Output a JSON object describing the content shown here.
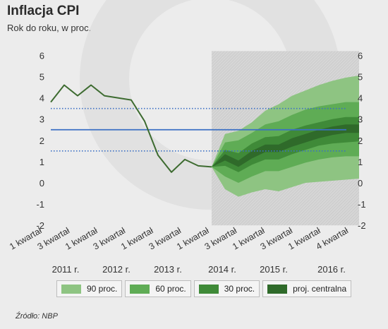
{
  "header": {
    "title": "Inflacja CPI",
    "subtitle": "Rok do roku, w proc."
  },
  "source": "Źródło: NBP",
  "colors": {
    "band90": "#8ec482",
    "band60": "#5fac55",
    "band30": "#3f8a38",
    "central": "#2f6a2a",
    "line": "#3d6b30",
    "target": "#3b6fc4"
  },
  "legend": [
    {
      "label": "90 proc.",
      "color": "#8ec482"
    },
    {
      "label": "60 proc.",
      "color": "#5fac55"
    },
    {
      "label": "30 proc.",
      "color": "#3f8a38"
    },
    {
      "label": "proj. centralna",
      "color": "#2f6a2a"
    }
  ],
  "chart_data": {
    "type": "area",
    "title": "Inflacja CPI",
    "subtitle": "Rok do roku, w proc.",
    "ylim": [
      -2,
      6
    ],
    "yticks": [
      -2,
      -1,
      0,
      1,
      2,
      3,
      4,
      5,
      6
    ],
    "quarter_labels": [
      "1 kwartał",
      "3 kwartał",
      "1 kwartał",
      "3 kwartał",
      "1 kwartał",
      "3 kwartał",
      "1 kwartał",
      "3 kwartał",
      "1 kwartał",
      "3 kwartał",
      "1 kwartał",
      "4 kwartał"
    ],
    "year_labels": [
      "2011 r.",
      "2012 r.",
      "2013 r.",
      "2014 r.",
      "2015 r.",
      "2016 r."
    ],
    "target_line": 2.5,
    "tolerance_band": [
      1.5,
      3.5
    ],
    "series": [
      {
        "name": "CPI",
        "x": [
          0,
          1,
          2,
          3,
          4,
          6,
          7,
          8,
          9,
          10,
          11,
          12
        ],
        "values": [
          3.8,
          4.6,
          4.1,
          4.6,
          4.1,
          3.9,
          2.9,
          1.3,
          0.5,
          1.1,
          0.8,
          0.75
        ]
      }
    ],
    "fan_chart": {
      "x": [
        12,
        13,
        14,
        15,
        16,
        17,
        18,
        19,
        20,
        21,
        22,
        23
      ],
      "central": [
        0.75,
        1.2,
        0.9,
        1.3,
        1.6,
        1.6,
        1.9,
        2.1,
        2.3,
        2.45,
        2.55,
        2.55
      ],
      "band90": [
        [
          0.75,
          0.75
        ],
        [
          -0.3,
          2.3
        ],
        [
          -0.65,
          2.45
        ],
        [
          -0.45,
          2.85
        ],
        [
          -0.3,
          3.4
        ],
        [
          -0.4,
          3.7
        ],
        [
          -0.2,
          4.1
        ],
        [
          0.0,
          4.35
        ],
        [
          0.05,
          4.6
        ],
        [
          0.1,
          4.8
        ],
        [
          0.15,
          4.95
        ],
        [
          0.2,
          5.05
        ]
      ],
      "band60": [
        [
          0.75,
          0.75
        ],
        [
          0.3,
          1.9
        ],
        [
          0.0,
          2.0
        ],
        [
          0.3,
          2.35
        ],
        [
          0.55,
          2.75
        ],
        [
          0.55,
          2.9
        ],
        [
          0.75,
          3.2
        ],
        [
          0.95,
          3.45
        ],
        [
          1.1,
          3.6
        ],
        [
          1.2,
          3.7
        ],
        [
          1.25,
          3.8
        ],
        [
          1.25,
          3.8
        ]
      ],
      "band30": [
        [
          0.75,
          0.75
        ],
        [
          0.8,
          1.55
        ],
        [
          0.5,
          1.4
        ],
        [
          0.85,
          1.85
        ],
        [
          1.1,
          2.15
        ],
        [
          1.1,
          2.2
        ],
        [
          1.35,
          2.5
        ],
        [
          1.55,
          2.7
        ],
        [
          1.75,
          2.85
        ],
        [
          1.85,
          3.0
        ],
        [
          1.9,
          3.1
        ],
        [
          1.95,
          3.1
        ]
      ],
      "bandCentral": [
        [
          0.75,
          0.75
        ],
        [
          1.05,
          1.35
        ],
        [
          0.75,
          1.05
        ],
        [
          1.15,
          1.5
        ],
        [
          1.45,
          1.8
        ],
        [
          1.45,
          1.8
        ],
        [
          1.7,
          2.1
        ],
        [
          1.9,
          2.3
        ],
        [
          2.1,
          2.5
        ],
        [
          2.25,
          2.65
        ],
        [
          2.35,
          2.75
        ],
        [
          2.35,
          2.75
        ]
      ]
    }
  }
}
